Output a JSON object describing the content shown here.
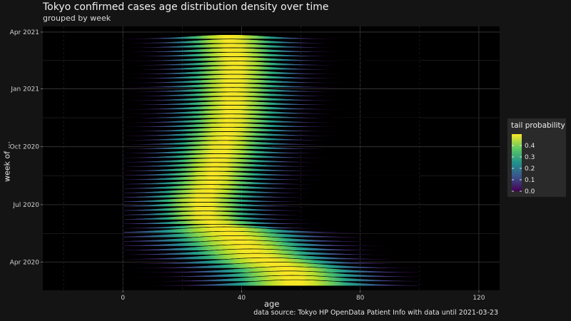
{
  "chart_data": {
    "type": "ridgeline",
    "title": "Tokyo confirmed cases age distribution density over time",
    "subtitle": "grouped by week",
    "xlabel": "age",
    "ylabel": "week of ...",
    "caption": "data source: Tokyo HP OpenData Patient Info with data until 2021-03-23",
    "xlim": [
      -27,
      127
    ],
    "x_ticks": [
      0,
      40,
      80,
      120
    ],
    "y_range": [
      "2020-02-16",
      "2021-04-10"
    ],
    "y_ticks": [
      {
        "label": "Apr 2020",
        "date": "2020-04-01"
      },
      {
        "label": "Jul 2020",
        "date": "2020-07-01"
      },
      {
        "label": "Oct 2020",
        "date": "2020-10-01"
      },
      {
        "label": "Jan 2021",
        "date": "2021-01-01"
      },
      {
        "label": "Apr 2021",
        "date": "2021-04-01"
      }
    ],
    "weeks": {
      "start": "2020-02-23",
      "end": "2021-03-21",
      "interval_days": 7,
      "count": 57
    },
    "age_range": [
      0,
      100
    ],
    "peak_age_trend": [
      {
        "date": "2020-02-23",
        "peak_age": 58
      },
      {
        "date": "2020-03-15",
        "peak_age": 55
      },
      {
        "date": "2020-04-05",
        "peak_age": 45
      },
      {
        "date": "2020-05-03",
        "peak_age": 38
      },
      {
        "date": "2020-06-07",
        "peak_age": 28
      },
      {
        "date": "2020-07-05",
        "peak_age": 27
      },
      {
        "date": "2020-08-02",
        "peak_age": 30
      },
      {
        "date": "2020-09-06",
        "peak_age": 32
      },
      {
        "date": "2020-10-04",
        "peak_age": 34
      },
      {
        "date": "2020-11-01",
        "peak_age": 36
      },
      {
        "date": "2020-12-06",
        "peak_age": 37
      },
      {
        "date": "2021-01-03",
        "peak_age": 37
      },
      {
        "date": "2021-02-07",
        "peak_age": 38
      },
      {
        "date": "2021-03-21",
        "peak_age": 36
      }
    ],
    "legend": {
      "title": "tail probability",
      "range": [
        0,
        0.5
      ],
      "ticks": [
        0.0,
        0.1,
        0.2,
        0.3,
        0.4
      ],
      "tick_labels": [
        "0.0",
        "0.1",
        "0.2",
        "0.3",
        "0.4"
      ],
      "colors": [
        "#440154",
        "#3b528b",
        "#21918c",
        "#5ec962",
        "#fde725"
      ],
      "placement": "right"
    },
    "background": "#000000",
    "grid": true
  }
}
